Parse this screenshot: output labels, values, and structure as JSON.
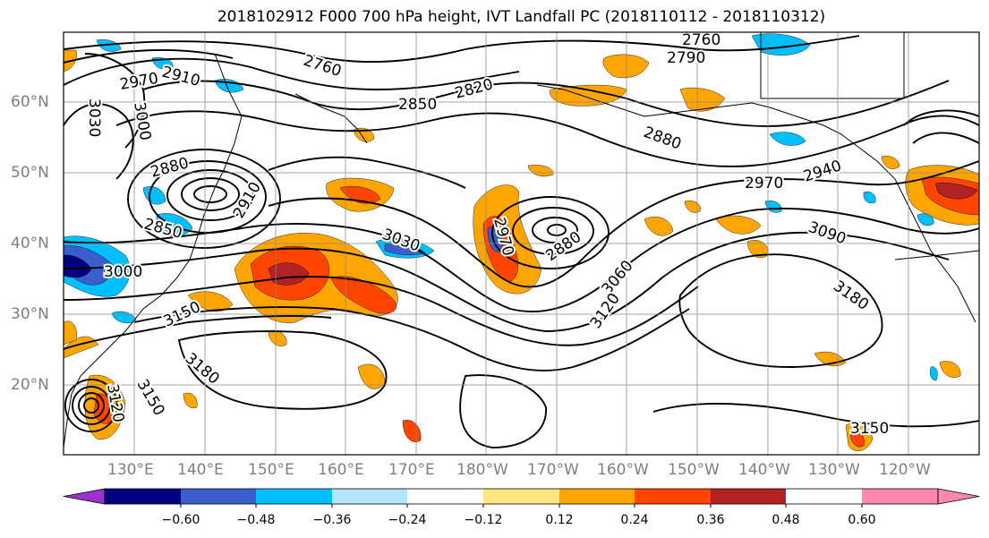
{
  "title": "2018102912 F000 700 hPa height, IVT Landfall PC (2018110112 - 2018110312)",
  "lat_labels": [
    "60°N",
    "50°N",
    "40°N",
    "30°N",
    "20°N"
  ],
  "lon_labels": [
    "130°E",
    "140°E",
    "150°E",
    "160°E",
    "170°E",
    "180°W",
    "170°W",
    "160°W",
    "150°W",
    "140°W",
    "130°W",
    "120°W"
  ],
  "contour_labels": [
    "2760",
    "2790",
    "2910",
    "2970",
    "2760",
    "2820",
    "2850",
    "3030",
    "3000",
    "2880",
    "2880",
    "2850",
    "2910",
    "2970",
    "2940",
    "3030",
    "2970",
    "2880",
    "3090",
    "3000",
    "3060",
    "3150",
    "3120",
    "3180",
    "3180",
    "3150",
    "3150",
    "3120"
  ],
  "colorbar": {
    "colors": [
      "#9a32cd",
      "#000080",
      "#3a5fcd",
      "#00bfff",
      "#b3e5fc",
      "#ffffff",
      "#ffe680",
      "#ffa500",
      "#ff4500",
      "#b22222",
      "#ff88b0"
    ],
    "ticks": [
      "−0.60",
      "−0.48",
      "−0.36",
      "−0.24",
      "−0.12",
      "0.12",
      "0.24",
      "0.36",
      "0.48",
      "0.60"
    ]
  }
}
